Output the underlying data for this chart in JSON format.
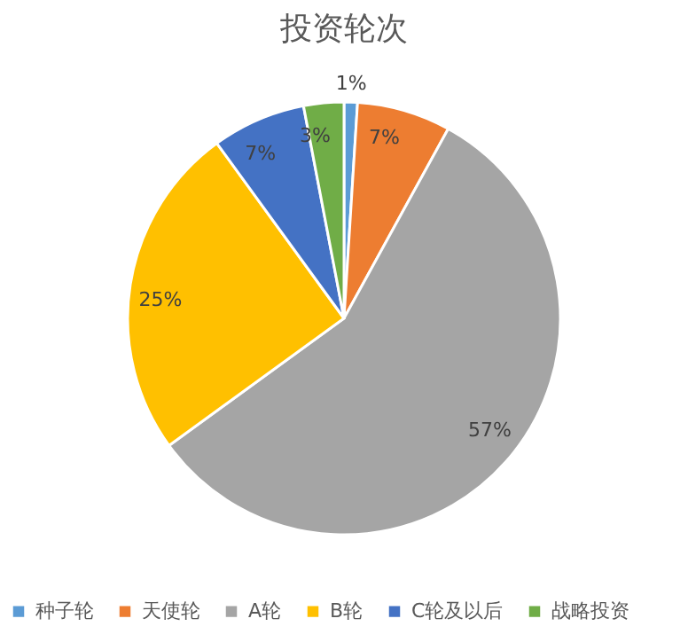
{
  "chart_data": {
    "type": "pie",
    "title": "投资轮次",
    "categories": [
      "种子轮",
      "天使轮",
      "A轮",
      "B轮",
      "C轮及以后",
      "战略投资"
    ],
    "values": [
      1,
      7,
      57,
      25,
      7,
      3
    ],
    "value_labels": [
      "1%",
      "7%",
      "57%",
      "25%",
      "7%",
      "3%"
    ],
    "colors": [
      "#5b9bd5",
      "#ed7d31",
      "#a5a5a5",
      "#ffc000",
      "#4472c4",
      "#70ad47"
    ],
    "legend": "bottom"
  }
}
